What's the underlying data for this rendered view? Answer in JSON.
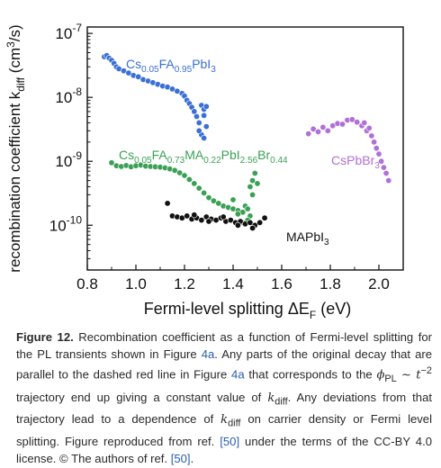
{
  "chart_data": {
    "type": "scatter",
    "xlabel": "Fermi-level splitting ΔE_F (eV)",
    "ylabel": "recombination coefficient k_diff (cm³/s)",
    "xlim": [
      0.8,
      2.1
    ],
    "ylim_log10": [
      -10.7,
      -6.9
    ],
    "y_scale": "log",
    "x_ticks": [
      "0.8",
      "1.0",
      "1.2",
      "1.4",
      "1.6",
      "1.8",
      "2.0"
    ],
    "y_ticks": [
      "10-10",
      "10-9",
      "10-8",
      "10-7"
    ],
    "grid": false,
    "series": [
      {
        "name": "Cs0.05FA0.95PbI3",
        "color": "#3a6fd6",
        "x": [
          0.87,
          0.88,
          0.89,
          0.9,
          0.91,
          0.92,
          0.93,
          0.95,
          0.97,
          0.99,
          1.01,
          1.03,
          1.05,
          1.07,
          1.09,
          1.11,
          1.13,
          1.15,
          1.17,
          1.19,
          1.2,
          1.21,
          1.22,
          1.23,
          1.24,
          1.25,
          1.26,
          1.27,
          1.28,
          1.28,
          1.29,
          1.27,
          1.26,
          1.28,
          1.29
        ],
        "y": [
          4.3e-08,
          4.5e-08,
          4.1e-08,
          3.8e-08,
          3.4e-08,
          3e-08,
          2.8e-08,
          2.6e-08,
          2.4e-08,
          2.2e-08,
          2.1e-08,
          1.9e-08,
          1.8e-08,
          1.7e-08,
          1.6e-08,
          1.5e-08,
          1.45e-08,
          1.35e-08,
          1.25e-08,
          1.15e-08,
          1.05e-08,
          9e-09,
          8e-09,
          7e-09,
          6e-09,
          5e-09,
          4e-09,
          7.5e-09,
          6.5e-09,
          5.2e-09,
          3.5e-09,
          2.6e-09,
          3e-09,
          2.3e-09,
          7.2e-09
        ]
      },
      {
        "name": "Cs0.05FA0.73MA0.22PbI2.56Br0.44",
        "color": "#3aa055",
        "x": [
          0.9,
          0.92,
          0.94,
          0.96,
          0.98,
          1.0,
          1.02,
          1.04,
          1.06,
          1.08,
          1.1,
          1.12,
          1.14,
          1.16,
          1.18,
          1.2,
          1.22,
          1.24,
          1.26,
          1.28,
          1.3,
          1.32,
          1.34,
          1.36,
          1.38,
          1.4,
          1.42,
          1.44,
          1.45,
          1.46,
          1.47,
          1.48,
          1.49,
          1.5,
          1.48,
          1.47,
          1.46,
          1.44,
          1.42,
          1.4
        ],
        "y": [
          9.5e-10,
          8.5e-10,
          8.3e-10,
          8.6e-10,
          8.2e-10,
          8.5e-10,
          8.7e-10,
          8.4e-10,
          8.3e-10,
          8.2e-10,
          8.1e-10,
          7.9e-10,
          7.6e-10,
          7.2e-10,
          6.6e-10,
          6e-10,
          5.2e-10,
          4.5e-10,
          3.8e-10,
          3.2e-10,
          2.7e-10,
          2.4e-10,
          2.2e-10,
          2e-10,
          1.9e-10,
          1.8e-10,
          1.7e-10,
          1.6e-10,
          2e-10,
          1.8e-10,
          4e-10,
          5e-10,
          6.5e-10,
          4.5e-10,
          3e-10,
          1.4e-10,
          1.2e-10,
          1.1e-10,
          1.5e-10,
          2.5e-10
        ]
      },
      {
        "name": "MAPbI3",
        "color": "#111111",
        "x": [
          1.13,
          1.15,
          1.17,
          1.19,
          1.21,
          1.23,
          1.25,
          1.27,
          1.29,
          1.31,
          1.33,
          1.35,
          1.37,
          1.39,
          1.41,
          1.43,
          1.45,
          1.47,
          1.49,
          1.51,
          1.53,
          1.24,
          1.3,
          1.36,
          1.42,
          1.48
        ],
        "y": [
          2.2e-10,
          1.4e-10,
          1.35e-10,
          1.3e-10,
          1.4e-10,
          1.25e-10,
          1.3e-10,
          1.2e-10,
          1.35e-10,
          1.25e-10,
          1.2e-10,
          1.3e-10,
          1.15e-10,
          1.2e-10,
          1.1e-10,
          1.15e-10,
          1.05e-10,
          1.1e-10,
          1e-10,
          1.1e-10,
          1.3e-10,
          1.45e-10,
          1.15e-10,
          1.35e-10,
          1e-10,
          9e-11
        ]
      },
      {
        "name": "CsPbBr3",
        "color": "#b070d6",
        "x": [
          1.71,
          1.73,
          1.75,
          1.77,
          1.79,
          1.81,
          1.83,
          1.85,
          1.87,
          1.89,
          1.91,
          1.93,
          1.95,
          1.97,
          1.98,
          1.99,
          2.0,
          2.01,
          2.02,
          2.03,
          2.04,
          1.94,
          1.96
        ],
        "y": [
          2.7e-09,
          3.2e-09,
          2.9e-09,
          3.4e-09,
          3e-09,
          3.6e-09,
          3.9e-09,
          3.8e-09,
          4.4e-09,
          4.5e-09,
          4.1e-09,
          3.6e-09,
          3e-09,
          2.5e-09,
          2e-09,
          1.6e-09,
          1.3e-09,
          1e-09,
          8e-10,
          6.5e-10,
          5e-10,
          4e-09,
          3.3e-09
        ]
      }
    ],
    "series_labels": {
      "cs_fa": {
        "base": [
          "Cs",
          "FA",
          "PbI"
        ],
        "subs": [
          "0.05",
          "0.95",
          "3"
        ]
      },
      "cs_fa_ma": {
        "base": [
          "Cs",
          "FA",
          "MA",
          "PbI",
          "Br"
        ],
        "subs": [
          "0.05",
          "0.73",
          "0.22",
          "2.56",
          "0.44"
        ]
      },
      "mapbi": {
        "base": [
          "MAPbI"
        ],
        "subs": [
          "3"
        ]
      },
      "cspbbr": {
        "base": [
          "CsPbBr"
        ],
        "subs": [
          "3"
        ]
      }
    }
  },
  "caption": {
    "label": "Figure 12.",
    "text_1": " Recombination coefficient as a function of Fermi-level splitting for the PL transients shown in Figure ",
    "ref_fig_1": "4a",
    "text_2": ". Any parts of the original decay that are parallel to the dashed red line in Figure ",
    "ref_fig_2": "4a",
    "text_3": " that corresponds to the ",
    "math_phi": "ϕ",
    "math_phi_sub": "PL",
    "math_rel": " ∼ t",
    "math_exp": "−2",
    "text_4": " trajectory end up giving a constant value of ",
    "math_k": "k",
    "math_k_sub": "diff",
    "text_5": ". Any deviations from that trajectory lead to a dependence of ",
    "math_k2": "k",
    "math_k2_sub": "diff",
    "text_6": " on carrier density or Fermi level splitting. Figure reproduced from ref. ",
    "ref_1": "[50]",
    "text_7": " under the terms of the CC-BY 4.0 license. © The authors of ref. ",
    "ref_2": "[50]",
    "text_8": "."
  }
}
